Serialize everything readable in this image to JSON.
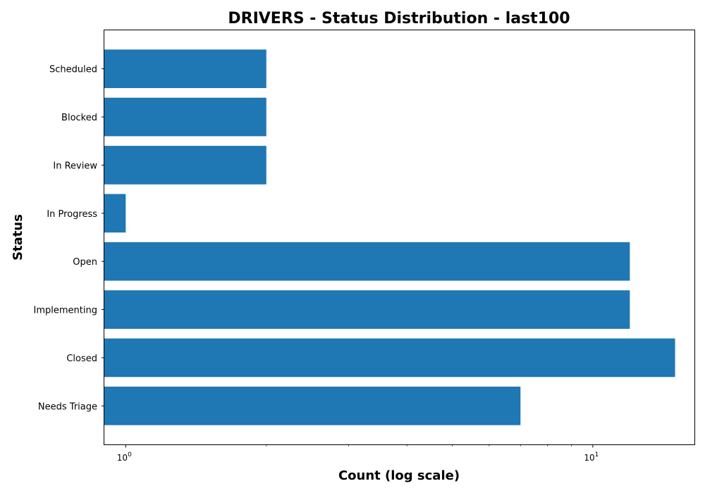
{
  "chart_data": {
    "type": "bar",
    "orientation": "horizontal",
    "title": "DRIVERS - Status Distribution - last100",
    "xlabel": "Count (log scale)",
    "ylabel": "Status",
    "x_scale": "log",
    "xlim": [
      0.9,
      16.5
    ],
    "categories": [
      "Needs Triage",
      "Closed",
      "Implementing",
      "Open",
      "In Progress",
      "In Review",
      "Blocked",
      "Scheduled"
    ],
    "values": [
      7,
      15,
      12,
      12,
      1,
      2,
      2,
      2
    ],
    "x_ticks": [
      {
        "value": 1,
        "base": "10",
        "exp": "0"
      },
      {
        "value": 10,
        "base": "10",
        "exp": "1"
      }
    ],
    "bar_color": "#1f77b4",
    "grid": false,
    "legend": "none"
  }
}
